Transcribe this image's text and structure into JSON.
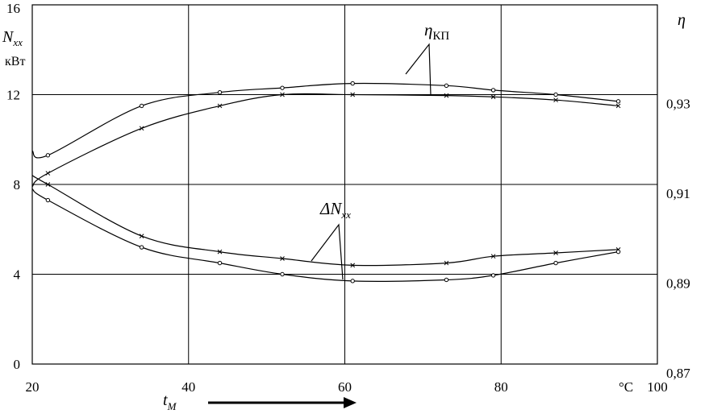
{
  "chart_data": {
    "type": "line",
    "x_axis": {
      "range": [
        20,
        100
      ],
      "ticks": [
        "20",
        "40",
        "60",
        "80",
        "100"
      ],
      "tick_values": [
        20,
        40,
        60,
        80,
        100
      ],
      "unit": "°C",
      "label_main": "t",
      "label_sub": "M"
    },
    "y_left": {
      "range": [
        0,
        16
      ],
      "ticks": [
        "0",
        "4",
        "8",
        "12",
        "16"
      ],
      "tick_values": [
        0,
        4,
        8,
        12,
        16
      ],
      "label_main": "N",
      "label_sub": "xx",
      "unit": "кВт"
    },
    "y_right": {
      "range": [
        0.87,
        0.95
      ],
      "ticks": [
        "0,87",
        "0,89",
        "0,91",
        "0,93"
      ],
      "tick_values": [
        0.87,
        0.89,
        0.91,
        0.93
      ],
      "label": "η"
    },
    "grid": true,
    "series": [
      {
        "axis": "right",
        "marker": "circle",
        "x": [
          20,
          22,
          34,
          44,
          52,
          61,
          73,
          79,
          87,
          95
        ],
        "values": [
          0.9175,
          0.9165,
          0.9275,
          0.9305,
          0.9315,
          0.9325,
          0.932,
          0.931,
          0.93,
          0.9285
        ]
      },
      {
        "axis": "right",
        "marker": "cross",
        "x": [
          20,
          22,
          34,
          44,
          52,
          61,
          73,
          79,
          87,
          95
        ],
        "values": [
          0.9095,
          0.9125,
          0.9225,
          0.9275,
          0.93,
          0.93,
          0.9298,
          0.9295,
          0.9288,
          0.9275
        ]
      },
      {
        "axis": "left",
        "marker": "cross",
        "x": [
          20,
          22,
          34,
          44,
          52,
          61,
          73,
          79,
          87,
          95
        ],
        "values": [
          8.4,
          8.0,
          5.7,
          5.0,
          4.7,
          4.4,
          4.5,
          4.8,
          4.95,
          5.1
        ]
      },
      {
        "axis": "left",
        "marker": "circle",
        "x": [
          20,
          22,
          34,
          44,
          52,
          61,
          73,
          79,
          87,
          95
        ],
        "values": [
          7.8,
          7.3,
          5.2,
          4.5,
          4.0,
          3.7,
          3.75,
          3.95,
          4.5,
          5.0
        ]
      }
    ],
    "annotations": [
      {
        "main": "η",
        "sub": "КП"
      },
      {
        "main": "ΔN",
        "sub": "xx"
      }
    ],
    "arrow": "right"
  }
}
